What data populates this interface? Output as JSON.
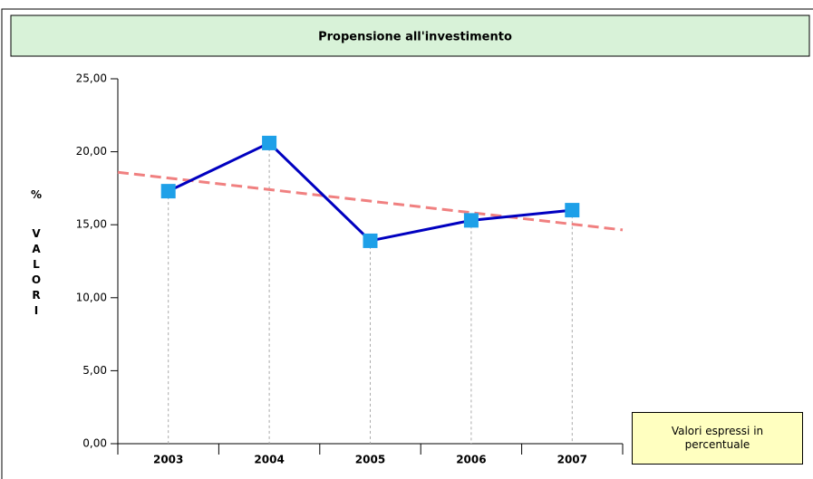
{
  "chart_data": {
    "type": "line",
    "title": "Propensione all'investimento",
    "ylabel": "% VALORI",
    "categories": [
      "2003",
      "2004",
      "2005",
      "2006",
      "2007"
    ],
    "series": [
      {
        "name": "Propensione all'investimento",
        "color": "#0000c0",
        "marker_color": "#1ea0e8",
        "values": [
          17.3,
          20.6,
          13.9,
          15.3,
          16.0
        ]
      }
    ],
    "trendline": true,
    "trendline_color": "#f08080",
    "ylim": [
      0,
      25
    ],
    "yticks": [
      {
        "value": 0,
        "label": "0,00"
      },
      {
        "value": 5,
        "label": "5,00"
      },
      {
        "value": 10,
        "label": "10,00"
      },
      {
        "value": 15,
        "label": "15,00"
      },
      {
        "value": 20,
        "label": "20,00"
      },
      {
        "value": 25,
        "label": "25,00"
      }
    ],
    "annotation": "Valori espressi in percentuale"
  }
}
